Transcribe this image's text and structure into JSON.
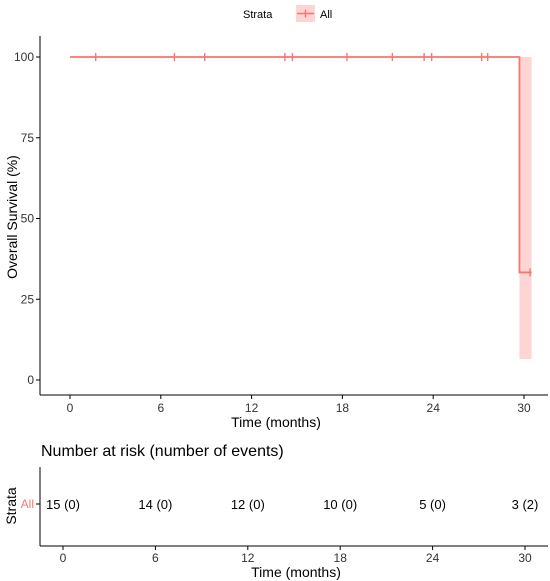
{
  "legend": {
    "title": "Strata",
    "label": "All",
    "position": "top"
  },
  "colors": {
    "curve": "#f8766d",
    "band": "#f8766d",
    "axis": "#000000"
  },
  "chart_data": [
    {
      "type": "line",
      "subtype": "kaplan-meier step with confidence band",
      "xlabel": "Time (months)",
      "ylabel": "Overall Survival (%)",
      "xlim": [
        0,
        30
      ],
      "ylim": [
        0,
        100
      ],
      "x_ticks": [
        0,
        6,
        12,
        18,
        24,
        30
      ],
      "y_ticks": [
        0,
        25,
        50,
        75,
        100
      ],
      "grid": false,
      "series": [
        {
          "name": "All",
          "steps": [
            {
              "x": 0,
              "y": 100
            },
            {
              "x": 29.7,
              "y": 33.3
            },
            {
              "x": 30.5,
              "y": 33.3
            }
          ],
          "censor_marks": [
            {
              "x": 1.7,
              "y": 100
            },
            {
              "x": 6.9,
              "y": 100
            },
            {
              "x": 8.9,
              "y": 100
            },
            {
              "x": 14.2,
              "y": 100
            },
            {
              "x": 14.7,
              "y": 100
            },
            {
              "x": 18.3,
              "y": 100
            },
            {
              "x": 21.3,
              "y": 100
            },
            {
              "x": 23.4,
              "y": 100
            },
            {
              "x": 23.9,
              "y": 100
            },
            {
              "x": 27.2,
              "y": 100
            },
            {
              "x": 27.6,
              "y": 100
            },
            {
              "x": 30.4,
              "y": 33.3
            }
          ],
          "confidence_band": [
            {
              "x": 29.7,
              "lower": 6.5,
              "upper": 100
            },
            {
              "x": 30.5,
              "lower": 6.5,
              "upper": 100
            }
          ]
        }
      ]
    },
    {
      "type": "table",
      "title": "Number at risk (number of events)",
      "xlabel": "Time (months)",
      "ylabel": "Strata",
      "row_label": "All",
      "xlim": [
        0,
        30
      ],
      "x_ticks": [
        0,
        6,
        12,
        18,
        24,
        30
      ],
      "cells": [
        {
          "x": 0,
          "text": "15 (0)"
        },
        {
          "x": 6,
          "text": "14 (0)"
        },
        {
          "x": 12,
          "text": "12 (0)"
        },
        {
          "x": 18,
          "text": "10 (0)"
        },
        {
          "x": 24,
          "text": "5 (0)"
        },
        {
          "x": 30,
          "text": "3 (2)"
        }
      ]
    }
  ]
}
